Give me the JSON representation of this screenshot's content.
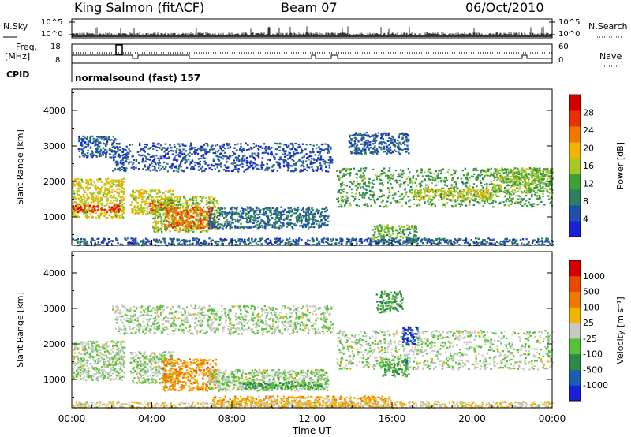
{
  "header": {
    "station": "King Salmon (fitACF)",
    "beam": "Beam 07",
    "date": "06/Oct/2010"
  },
  "side_labels": {
    "n_sky": "N.Sky",
    "n_search": "N.Search",
    "freq": "Freq.",
    "freq_unit": "[MHz]",
    "nave": "Nave",
    "cpid": "CPID",
    "cpid_value": "normalsound (fast) 157"
  },
  "small_axes": {
    "noise_left_ticks": [
      "10^5",
      "10^0"
    ],
    "noise_right_ticks": [
      "10^5",
      "10^0"
    ],
    "freq_ticks": [
      "18",
      "8"
    ],
    "nave_ticks": [
      "60",
      "0"
    ]
  },
  "colors": {
    "power_scale": [
      "#1a20d8",
      "#1f4fa8",
      "#2e7d5e",
      "#3da13a",
      "#a8c826",
      "#f2b400",
      "#f07800",
      "#e83000",
      "#d40000"
    ],
    "velocity_scale": [
      "#1a20d8",
      "#1c5fb0",
      "#2d8a45",
      "#55c23a",
      "#c8c8c4",
      "#f2b400",
      "#f07800",
      "#e84a00",
      "#d40000"
    ]
  },
  "chart_data": [
    {
      "type": "heatmap",
      "name": "power",
      "ylabel": "Slant Range [km]",
      "yticks": [
        "4000",
        "3000",
        "2000",
        "1000"
      ],
      "ylim": [
        200,
        4600
      ],
      "xlim_hours": [
        0,
        24
      ],
      "colorbar_label": "Power [dB]",
      "colorbar_ticks": [
        "28",
        "24",
        "20",
        "16",
        "12",
        "8",
        "4"
      ],
      "regions": [
        {
          "x": [
            0.0,
            2.6
          ],
          "y": [
            1000,
            2100
          ],
          "level": 0.55
        },
        {
          "x": [
            0.0,
            2.4
          ],
          "y": [
            1150,
            1350
          ],
          "level": 0.9
        },
        {
          "x": [
            2.9,
            5.0
          ],
          "y": [
            1100,
            1800
          ],
          "level": 0.55
        },
        {
          "x": [
            3.8,
            5.0
          ],
          "y": [
            1200,
            1500
          ],
          "level": 0.85
        },
        {
          "x": [
            4.0,
            7.3
          ],
          "y": [
            600,
            1600
          ],
          "level": 0.5
        },
        {
          "x": [
            4.6,
            7.0
          ],
          "y": [
            700,
            1300
          ],
          "level": 0.8
        },
        {
          "x": [
            0.3,
            2.2
          ],
          "y": [
            2700,
            3300
          ],
          "level": 0.15
        },
        {
          "x": [
            2.0,
            13.0
          ],
          "y": [
            2300,
            3100
          ],
          "level": 0.12
        },
        {
          "x": [
            6.8,
            12.8
          ],
          "y": [
            700,
            1300
          ],
          "level": 0.2
        },
        {
          "x": [
            13.2,
            24.0
          ],
          "y": [
            1300,
            2400
          ],
          "level": 0.35
        },
        {
          "x": [
            17.0,
            21.0
          ],
          "y": [
            1500,
            1800
          ],
          "level": 0.55
        },
        {
          "x": [
            21.0,
            24.0
          ],
          "y": [
            1700,
            2400
          ],
          "level": 0.45
        },
        {
          "x": [
            13.8,
            16.8
          ],
          "y": [
            2800,
            3400
          ],
          "level": 0.15
        },
        {
          "x": [
            15.0,
            17.2
          ],
          "y": [
            300,
            800
          ],
          "level": 0.4
        },
        {
          "x": [
            0.0,
            24.0
          ],
          "y": [
            220,
            420
          ],
          "level": 0.15
        }
      ]
    },
    {
      "type": "heatmap",
      "name": "velocity",
      "ylabel": "Slant Range [km]",
      "yticks": [
        "4000",
        "3000",
        "2000",
        "1000"
      ],
      "ylim": [
        200,
        4600
      ],
      "xlim_hours": [
        0,
        24
      ],
      "colorbar_label": "Velocity [m s⁻¹]",
      "colorbar_ticks": [
        "1000",
        "500",
        "100",
        "25",
        "-25",
        "-100",
        "-500",
        "-1000"
      ],
      "regions": [
        {
          "x": [
            0.0,
            2.6
          ],
          "y": [
            1000,
            2100
          ],
          "level": 0.45
        },
        {
          "x": [
            2.9,
            5.0
          ],
          "y": [
            900,
            1800
          ],
          "level": 0.45
        },
        {
          "x": [
            4.5,
            7.3
          ],
          "y": [
            700,
            1600
          ],
          "level": 0.7
        },
        {
          "x": [
            2.0,
            13.0
          ],
          "y": [
            2300,
            3100
          ],
          "level": 0.45
        },
        {
          "x": [
            6.8,
            12.8
          ],
          "y": [
            700,
            1300
          ],
          "level": 0.45
        },
        {
          "x": [
            8.5,
            12.5
          ],
          "y": [
            750,
            950
          ],
          "level": 0.3
        },
        {
          "x": [
            13.2,
            24.0
          ],
          "y": [
            1300,
            2400
          ],
          "level": 0.45
        },
        {
          "x": [
            15.5,
            16.8
          ],
          "y": [
            1100,
            1600
          ],
          "level": 0.3
        },
        {
          "x": [
            15.2,
            16.5
          ],
          "y": [
            2900,
            3500
          ],
          "level": 0.3
        },
        {
          "x": [
            16.5,
            17.3
          ],
          "y": [
            2000,
            2500
          ],
          "level": 0.05
        },
        {
          "x": [
            7.0,
            16.0
          ],
          "y": [
            220,
            550
          ],
          "level": 0.65
        },
        {
          "x": [
            0.0,
            24.0
          ],
          "y": [
            220,
            400
          ],
          "level": 0.55
        }
      ]
    }
  ],
  "x_axis": {
    "ticks": [
      "00:00",
      "04:00",
      "08:00",
      "12:00",
      "16:00",
      "20:00",
      "00:00"
    ],
    "label": "Time UT"
  }
}
